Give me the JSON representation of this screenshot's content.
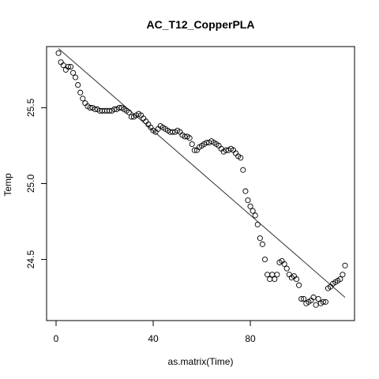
{
  "chart_data": {
    "type": "scatter",
    "title": "AC_T12_CopperPLA",
    "xlabel": "as.matrix(Time)",
    "ylabel": "Temp",
    "xlim": [
      -3.9,
      122.9
    ],
    "ylim": [
      24.097,
      25.903
    ],
    "xticks": [
      0,
      40,
      80
    ],
    "yticks": [
      24.5,
      25.0,
      25.5
    ],
    "xtick_labels": [
      "0",
      "40",
      "80"
    ],
    "ytick_labels": [
      "24.5",
      "25.0",
      "25.5"
    ],
    "grid": false,
    "marker": "open-circle",
    "series": [
      {
        "x": [
          1,
          2,
          3,
          4,
          5,
          6,
          7,
          8,
          9,
          10,
          11,
          12,
          13,
          14,
          15,
          16,
          17,
          18,
          19,
          20,
          21,
          22,
          23,
          24,
          25,
          26,
          27,
          28,
          29,
          30,
          31,
          32,
          33,
          34,
          35,
          36,
          37,
          38,
          39,
          40,
          41,
          42,
          43,
          44,
          45,
          46,
          47,
          48,
          49,
          50,
          51,
          52,
          53,
          54,
          55,
          56,
          57,
          58,
          59,
          60,
          61,
          62,
          63,
          64,
          65,
          66,
          67,
          68,
          69,
          70,
          71,
          72,
          73,
          74,
          75,
          76,
          77,
          78,
          79,
          80,
          81,
          82,
          83,
          84,
          85,
          86,
          87,
          88,
          89,
          90,
          91,
          92,
          93,
          94,
          95,
          96,
          97,
          98,
          99,
          100,
          101,
          102,
          103,
          104,
          105,
          106,
          107,
          108,
          109,
          110,
          111,
          112,
          113,
          114,
          115,
          116,
          117,
          118,
          119
        ],
        "y": [
          25.86,
          25.8,
          25.78,
          25.75,
          25.77,
          25.77,
          25.73,
          25.7,
          25.65,
          25.6,
          25.56,
          25.53,
          25.51,
          25.5,
          25.5,
          25.49,
          25.49,
          25.48,
          25.48,
          25.48,
          25.48,
          25.48,
          25.48,
          25.49,
          25.49,
          25.5,
          25.5,
          25.49,
          25.48,
          25.47,
          25.44,
          25.44,
          25.45,
          25.46,
          25.45,
          25.43,
          25.41,
          25.39,
          25.37,
          25.35,
          25.34,
          25.36,
          25.38,
          25.37,
          25.36,
          25.35,
          25.34,
          25.34,
          25.34,
          25.35,
          25.34,
          25.32,
          25.31,
          25.31,
          25.3,
          25.26,
          25.22,
          25.22,
          25.24,
          25.25,
          25.26,
          25.27,
          25.27,
          25.28,
          25.27,
          25.26,
          25.25,
          25.23,
          25.21,
          25.22,
          25.22,
          25.23,
          25.22,
          25.2,
          25.18,
          25.17,
          25.09,
          24.95,
          24.89,
          24.85,
          24.82,
          24.79,
          24.73,
          24.64,
          24.6,
          24.5,
          24.4,
          24.37,
          24.4,
          24.37,
          24.4,
          24.48,
          24.49,
          24.47,
          24.44,
          24.4,
          24.38,
          24.39,
          24.37,
          24.33,
          24.24,
          24.24,
          24.21,
          24.22,
          24.23,
          24.25,
          24.2,
          24.24,
          24.21,
          24.22,
          24.22,
          24.31,
          24.32,
          24.34,
          24.35,
          24.36,
          24.37,
          24.4,
          24.46
        ]
      }
    ],
    "trend_line": {
      "start": [
        1,
        25.89
      ],
      "end": [
        119,
        24.25
      ]
    }
  }
}
